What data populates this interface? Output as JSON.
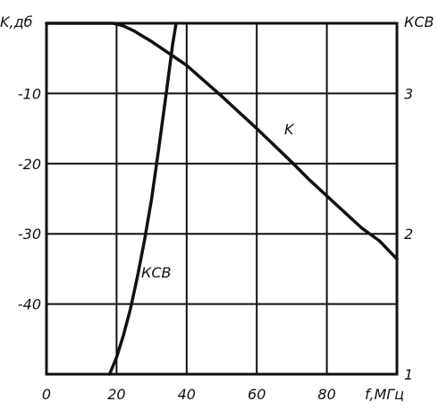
{
  "chart_data": {
    "type": "line",
    "ylabel_left": "K,дб",
    "ylabel_right": "КСВ",
    "xlabel": "f,МГц",
    "xlim": [
      0,
      100
    ],
    "ylim_left": [
      -50,
      0
    ],
    "ylim_right": [
      1,
      3.5
    ],
    "x_ticks": [
      "0",
      "20",
      "40",
      "60",
      "80"
    ],
    "y_ticks_left": [
      "-10",
      "-20",
      "-30",
      "-40"
    ],
    "y_ticks_right": [
      "1",
      "2",
      "3"
    ],
    "grid": true,
    "series": [
      {
        "name": "K",
        "axis": "left",
        "x": [
          0,
          19,
          20,
          22,
          25,
          28,
          30,
          35,
          40,
          45,
          50,
          55,
          60,
          65,
          70,
          75,
          80,
          85,
          90,
          95,
          100
        ],
        "y": [
          0,
          0,
          -0.1,
          -0.4,
          -1.1,
          -2.0,
          -2.6,
          -4.3,
          -6.0,
          -8.2,
          -10.4,
          -12.7,
          -15.0,
          -17.4,
          -19.8,
          -22.3,
          -24.6,
          -26.9,
          -29.2,
          -31.0,
          -33.6
        ]
      },
      {
        "name": "КСВ",
        "axis": "right",
        "x": [
          18,
          20,
          22,
          24,
          26,
          28,
          30,
          32,
          34,
          36,
          37
        ],
        "y": [
          1.0,
          1.12,
          1.28,
          1.47,
          1.7,
          1.96,
          2.25,
          2.6,
          2.97,
          3.35,
          3.5
        ]
      }
    ],
    "annotations": [
      "K",
      "КСВ"
    ]
  }
}
